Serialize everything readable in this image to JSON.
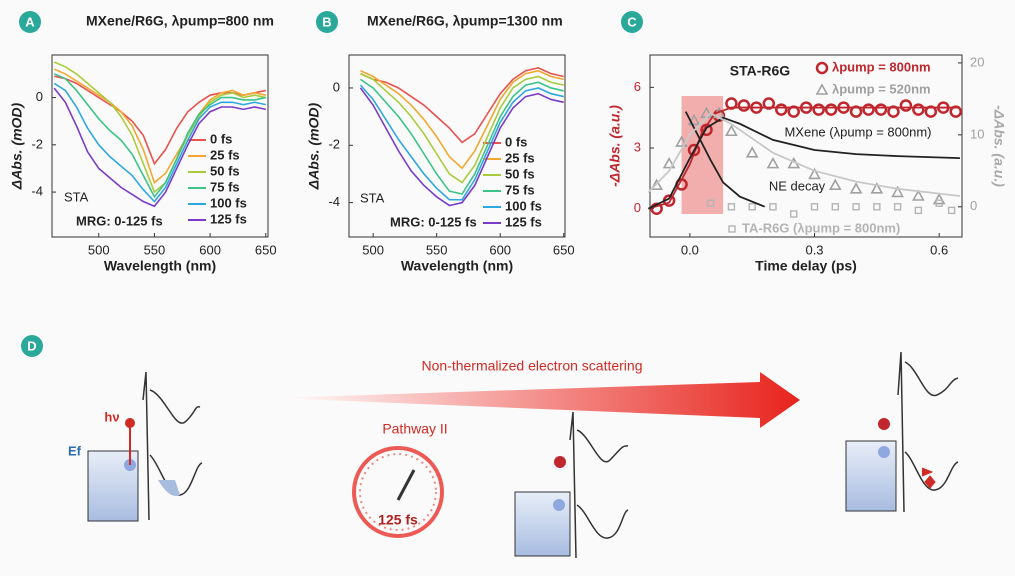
{
  "chart_data": [
    {
      "type": "line",
      "panel": "A",
      "title": "MXene/R6G, λpump=800 nm",
      "x_label": "Wavelength (nm)",
      "y_label": "ΔAbs. (mOD)",
      "annotations": [
        "STA",
        "MRG: 0-125 fs"
      ],
      "x": [
        460,
        470,
        480,
        490,
        500,
        510,
        520,
        530,
        540,
        550,
        560,
        570,
        580,
        590,
        600,
        610,
        620,
        630,
        640,
        650
      ],
      "xlim": [
        458,
        652
      ],
      "xticks": [
        500,
        550,
        600,
        650
      ],
      "ylim": [
        -5.9,
        1.8
      ],
      "yticks": [
        0,
        -2,
        -4
      ],
      "series": [
        {
          "name": "0 fs",
          "color": "#e8524f",
          "values": [
            0.9,
            0.8,
            0.6,
            0.3,
            0.0,
            -0.3,
            -0.6,
            -1.0,
            -1.6,
            -2.8,
            -2.2,
            -1.3,
            -0.6,
            -0.2,
            0.1,
            0.2,
            0.2,
            0.1,
            0.2,
            0.3
          ]
        },
        {
          "name": "25 fs",
          "color": "#f0a830",
          "values": [
            1.2,
            1.0,
            0.7,
            0.4,
            0.1,
            -0.2,
            -0.6,
            -1.2,
            -2.2,
            -3.6,
            -3.2,
            -2.4,
            -1.6,
            -0.7,
            -0.1,
            0.2,
            0.3,
            0.1,
            0.2,
            0.1
          ]
        },
        {
          "name": "50 fs",
          "color": "#a8cc3c",
          "values": [
            1.5,
            1.3,
            1.0,
            0.6,
            0.2,
            -0.2,
            -0.8,
            -1.6,
            -2.8,
            -4.0,
            -3.6,
            -2.6,
            -1.6,
            -0.8,
            -0.2,
            0.1,
            0.2,
            0.0,
            0.1,
            0.0
          ]
        },
        {
          "name": "75 fs",
          "color": "#3cc488",
          "values": [
            1.0,
            0.8,
            0.3,
            -0.3,
            -0.9,
            -1.4,
            -1.8,
            -2.4,
            -3.3,
            -4.2,
            -3.6,
            -2.6,
            -1.5,
            -0.7,
            -0.3,
            0.0,
            0.0,
            -0.1,
            -0.1,
            0.0
          ]
        },
        {
          "name": "100 fs",
          "color": "#2ea8e0",
          "values": [
            0.6,
            0.3,
            -0.4,
            -1.3,
            -2.0,
            -2.5,
            -2.9,
            -3.3,
            -3.9,
            -4.4,
            -3.8,
            -2.8,
            -1.8,
            -0.9,
            -0.4,
            -0.2,
            -0.2,
            -0.3,
            -0.2,
            -0.3
          ]
        },
        {
          "name": "125 fs",
          "color": "#7a3cc8",
          "values": [
            0.4,
            -0.2,
            -1.2,
            -2.3,
            -3.0,
            -3.4,
            -3.8,
            -4.1,
            -4.4,
            -4.6,
            -4.0,
            -3.0,
            -2.0,
            -1.1,
            -0.6,
            -0.4,
            -0.4,
            -0.5,
            -0.4,
            -0.5
          ]
        }
      ]
    },
    {
      "type": "line",
      "panel": "B",
      "title": "MXene/R6G, λpump=1300 nm",
      "x_label": "Wavelength (nm)",
      "y_label": "ΔAbs. (mOD)",
      "annotations": [
        "STA",
        "MRG: 0-125 fs"
      ],
      "x": [
        490,
        500,
        510,
        520,
        530,
        540,
        550,
        560,
        570,
        580,
        590,
        600,
        610,
        620,
        630,
        640,
        650
      ],
      "xlim": [
        481,
        651
      ],
      "xticks": [
        500,
        550,
        600,
        650
      ],
      "ylim": [
        -5.2,
        1.15
      ],
      "yticks": [
        0,
        -2,
        -4
      ],
      "series": [
        {
          "name": "0 fs",
          "color": "#e8524f",
          "values": [
            0.5,
            0.3,
            0.2,
            0.0,
            -0.3,
            -0.6,
            -1.0,
            -1.4,
            -1.9,
            -1.6,
            -0.9,
            -0.2,
            0.3,
            0.6,
            0.7,
            0.5,
            0.4
          ]
        },
        {
          "name": "25 fs",
          "color": "#f0a830",
          "values": [
            0.6,
            0.4,
            0.1,
            -0.2,
            -0.6,
            -1.1,
            -1.7,
            -2.4,
            -2.8,
            -2.2,
            -1.3,
            -0.4,
            0.2,
            0.5,
            0.6,
            0.4,
            0.3
          ]
        },
        {
          "name": "50 fs",
          "color": "#a8cc3c",
          "values": [
            0.5,
            0.3,
            -0.1,
            -0.5,
            -1.0,
            -1.6,
            -2.3,
            -3.0,
            -3.3,
            -2.7,
            -1.7,
            -0.7,
            0.0,
            0.3,
            0.4,
            0.2,
            0.1
          ]
        },
        {
          "name": "75 fs",
          "color": "#3cc488",
          "values": [
            0.3,
            0.0,
            -0.5,
            -1.0,
            -1.6,
            -2.3,
            -3.0,
            -3.6,
            -3.7,
            -3.0,
            -2.0,
            -1.0,
            -0.3,
            0.1,
            0.2,
            0.0,
            -0.1
          ]
        },
        {
          "name": "100 fs",
          "color": "#2ea8e0",
          "values": [
            0.1,
            -0.4,
            -1.1,
            -1.8,
            -2.4,
            -3.0,
            -3.5,
            -3.9,
            -3.9,
            -3.2,
            -2.2,
            -1.2,
            -0.5,
            -0.1,
            0.0,
            -0.2,
            -0.3
          ]
        },
        {
          "name": "125 fs",
          "color": "#7a3cc8",
          "values": [
            0.0,
            -0.6,
            -1.4,
            -2.2,
            -2.9,
            -3.4,
            -3.8,
            -4.1,
            -4.0,
            -3.4,
            -2.4,
            -1.4,
            -0.7,
            -0.3,
            -0.2,
            -0.4,
            -0.5
          ]
        }
      ]
    },
    {
      "type": "scatter",
      "panel": "C",
      "title": "STA-R6G",
      "x_label": "Time delay (ps)",
      "y_label": "-ΔAbs. (a.u.)",
      "y2_label": "-ΔAbs. (a.u.)",
      "annotations": [
        "MXene (λpump = 800nm)",
        "NE decay"
      ],
      "span": [
        -0.02,
        0.08
      ],
      "span_color": "#e8524f",
      "xlim": [
        -0.096,
        0.655
      ],
      "xticks": [
        {
          "value": 0,
          "label": "0.0"
        },
        0.3,
        0.6
      ],
      "ylim": [
        -1.4,
        7.6
      ],
      "yticks": [
        0,
        3,
        6
      ],
      "y2lim": [
        -4.2,
        21.1
      ],
      "y2ticks": [
        0,
        10,
        20
      ],
      "series": [
        {
          "name": "λpump = 800nm",
          "mode": "marker",
          "marker": "circle",
          "color": "#c0262d",
          "x": [
            -0.08,
            -0.05,
            -0.02,
            0.01,
            0.04,
            0.07,
            0.1,
            0.13,
            0.16,
            0.19,
            0.22,
            0.25,
            0.28,
            0.31,
            0.34,
            0.37,
            0.4,
            0.43,
            0.46,
            0.49,
            0.52,
            0.55,
            0.58,
            0.61,
            0.64
          ],
          "values": [
            0.0,
            0.4,
            1.2,
            2.9,
            3.9,
            4.6,
            5.2,
            5.1,
            5.0,
            5.2,
            4.9,
            4.8,
            5.0,
            4.9,
            4.9,
            5.0,
            4.8,
            4.9,
            4.9,
            4.8,
            5.1,
            4.9,
            4.8,
            5.0,
            4.8
          ]
        },
        {
          "name": "λpump = 520nm",
          "mode": "marker",
          "marker": "triangle",
          "color": "#a0a0a0",
          "axis": "y2",
          "x": [
            -0.08,
            -0.05,
            -0.02,
            0.01,
            0.04,
            0.07,
            0.1,
            0.15,
            0.2,
            0.25,
            0.3,
            0.35,
            0.4,
            0.45,
            0.5,
            0.55,
            0.6
          ],
          "values": [
            3,
            6,
            9,
            12,
            13,
            13,
            10.5,
            7.5,
            6,
            6,
            4.5,
            3,
            2.5,
            2.5,
            2,
            1.5,
            1.0
          ]
        },
        {
          "name": "TA-R6G (λpump = 800nm)",
          "mode": "marker",
          "marker": "square",
          "color": "#b4b4b4",
          "axis": "y2",
          "x": [
            0.05,
            0.1,
            0.15,
            0.2,
            0.25,
            0.3,
            0.35,
            0.4,
            0.45,
            0.5,
            0.55,
            0.6,
            0.63
          ],
          "values": [
            0.5,
            0,
            0,
            0,
            -1,
            0,
            0,
            0,
            0,
            0,
            -0.5,
            0.5,
            -0.5
          ]
        },
        {
          "mode": "line",
          "color": "#c0262d",
          "x": [
            -0.1,
            -0.05,
            0,
            0.03,
            0.06,
            0.1,
            0.2,
            0.4,
            0.65
          ],
          "values": [
            0,
            0.3,
            2.2,
            3.8,
            4.7,
            5.0,
            5.0,
            5.0,
            5.0
          ]
        },
        {
          "mode": "line",
          "color": "#222222",
          "x": [
            -0.1,
            -0.05,
            0,
            0.04,
            0.08,
            0.12,
            0.2,
            0.3,
            0.4,
            0.5,
            0.65
          ],
          "values": [
            0,
            0.5,
            2.5,
            4.0,
            4.5,
            4.2,
            3.4,
            2.9,
            2.7,
            2.6,
            2.5
          ]
        },
        {
          "mode": "line",
          "color": "#222222",
          "x": [
            -0.01,
            0.02,
            0.05,
            0.08,
            0.12,
            0.18
          ],
          "values": [
            4.8,
            3.6,
            2.4,
            1.3,
            0.6,
            0.1
          ]
        },
        {
          "mode": "line",
          "color": "#c8c8c8",
          "axis": "y2",
          "x": [
            -0.1,
            -0.05,
            0,
            0.05,
            0.1,
            0.2,
            0.3,
            0.4,
            0.5,
            0.65
          ],
          "values": [
            2,
            5,
            10,
            13,
            11.5,
            7.5,
            5,
            3.5,
            2.5,
            1.5
          ]
        }
      ]
    }
  ],
  "diagram": {
    "panel": "D",
    "arrow_text": "Non-thermalized electron scattering",
    "pathway": "Pathway II",
    "timer": "125 fs",
    "photon": "hν",
    "fermi": "Ef"
  }
}
